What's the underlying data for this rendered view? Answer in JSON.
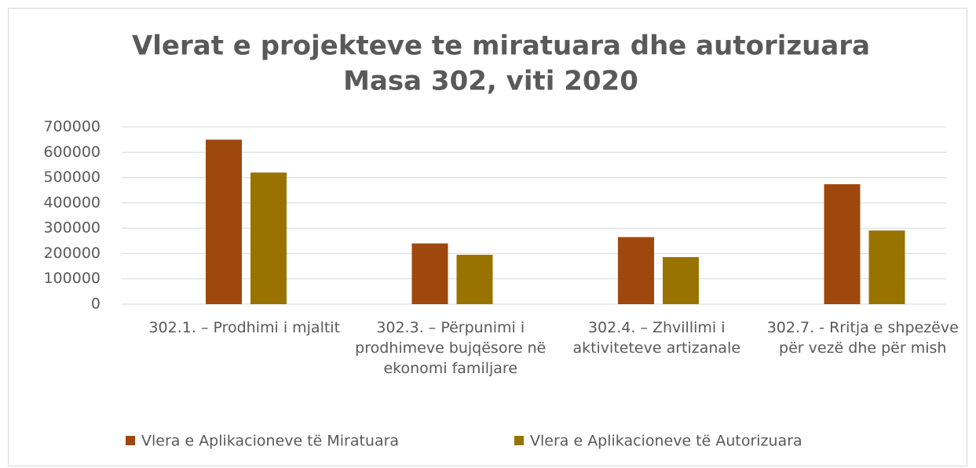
{
  "chart_data": {
    "type": "bar",
    "title": "Vlerat e projekteve te miratuara dhe autorizuara",
    "subtitle": "Masa 302, viti 2020",
    "categories": [
      "302.1. – Prodhimi i mjaltit",
      "302.3. – Përpunimi i prodhimeve bujqësore në ekonomi familjare",
      "302.4. – Zhvillimi  i aktiviteteve artizanale",
      "302.7. - Rritja e shpezëve për vezë dhe për mish"
    ],
    "series": [
      {
        "name": "Vlera e Aplikacioneve të Miratuara",
        "color": "#9e480e",
        "values": [
          650000,
          240000,
          265000,
          474000
        ]
      },
      {
        "name": "Vlera e Aplikacioneve të Autorizuara",
        "color": "#997300",
        "values": [
          520000,
          195000,
          186000,
          291000
        ]
      }
    ],
    "ylim": [
      0,
      700000
    ],
    "yticks": [
      0,
      100000,
      200000,
      300000,
      400000,
      500000,
      600000,
      700000
    ],
    "grid": true,
    "legend": "bottom"
  }
}
